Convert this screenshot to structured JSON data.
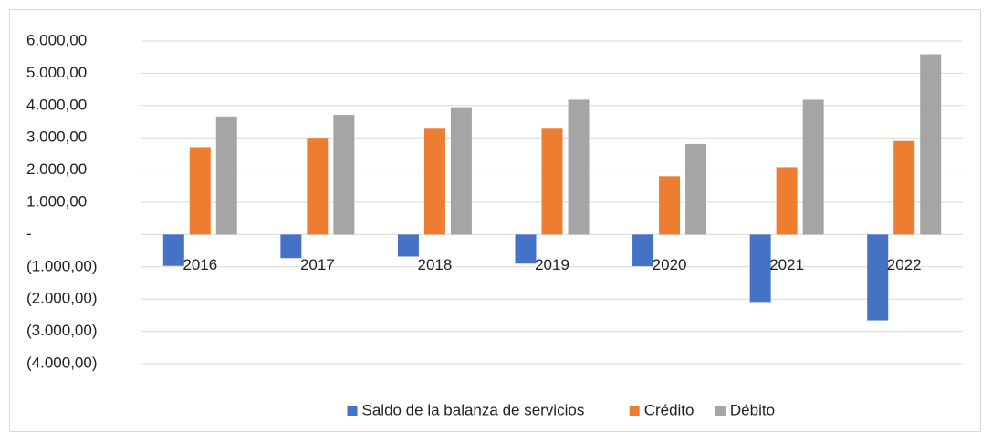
{
  "chart_data": {
    "type": "bar",
    "categories": [
      "2016",
      "2017",
      "2018",
      "2019",
      "2020",
      "2021",
      "2022"
    ],
    "series": [
      {
        "name": "Saldo de la balanza de servicios",
        "color": "#4472c4",
        "values": [
          -970,
          -730,
          -680,
          -900,
          -980,
          -2090,
          -2660
        ]
      },
      {
        "name": "Crédito",
        "color": "#ed7d31",
        "values": [
          2710,
          3000,
          3280,
          3280,
          1810,
          2090,
          2900
        ]
      },
      {
        "name": "Débito",
        "color": "#a5a5a5",
        "values": [
          3660,
          3710,
          3950,
          4180,
          2810,
          4180,
          5590
        ]
      }
    ],
    "ylim": [
      -4000,
      6000
    ],
    "yticks": [
      {
        "value": -4000,
        "label": "(4.000,00)"
      },
      {
        "value": -3000,
        "label": "(3.000,00)"
      },
      {
        "value": -2000,
        "label": "(2.000,00)"
      },
      {
        "value": -1000,
        "label": "(1.000,00)"
      },
      {
        "value": 0,
        "label": "-"
      },
      {
        "value": 1000,
        "label": "1.000,00"
      },
      {
        "value": 2000,
        "label": "2.000,00"
      },
      {
        "value": 3000,
        "label": "3.000,00"
      },
      {
        "value": 4000,
        "label": "4.000,00"
      },
      {
        "value": 5000,
        "label": "5.000,00"
      },
      {
        "value": 6000,
        "label": "6.000,00"
      }
    ],
    "grid": true
  }
}
